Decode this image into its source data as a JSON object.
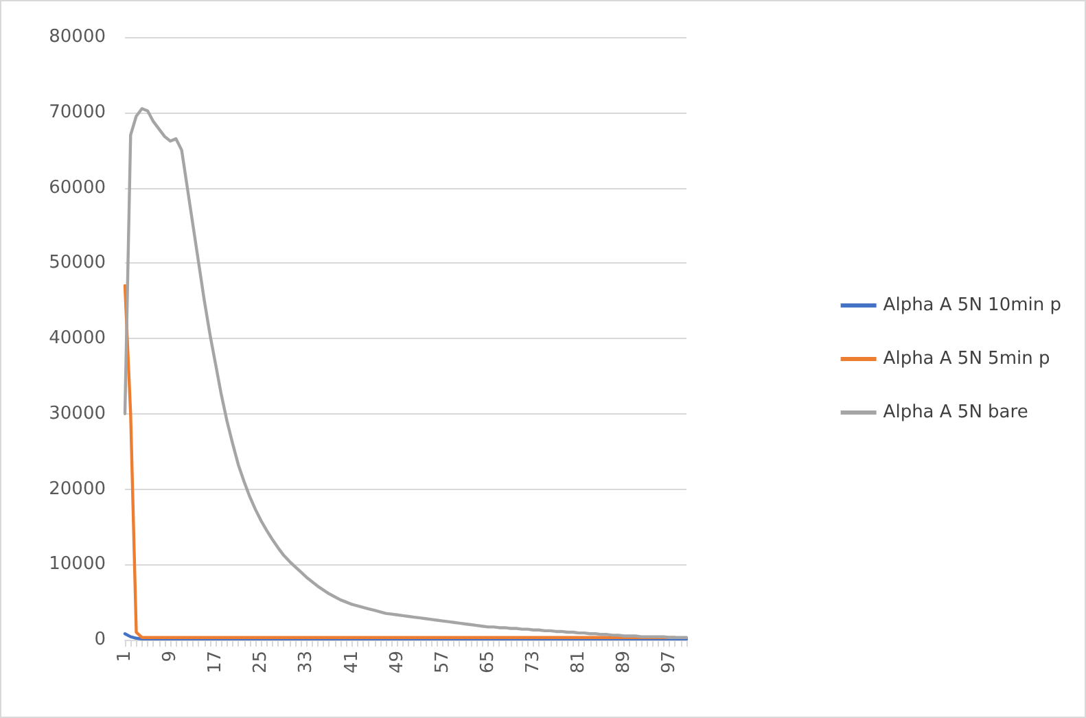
{
  "chart_data": {
    "type": "line",
    "categories": [
      "1",
      null,
      null,
      null,
      null,
      null,
      null,
      null,
      "9",
      null,
      null,
      null,
      null,
      null,
      null,
      null,
      "17",
      null,
      null,
      null,
      null,
      null,
      null,
      null,
      "25",
      null,
      null,
      null,
      null,
      null,
      null,
      null,
      "33",
      null,
      null,
      null,
      null,
      null,
      null,
      null,
      "41",
      null,
      null,
      null,
      null,
      null,
      null,
      null,
      "49",
      null,
      null,
      null,
      null,
      null,
      null,
      null,
      "57",
      null,
      null,
      null,
      null,
      null,
      null,
      null,
      "65",
      null,
      null,
      null,
      null,
      null,
      null,
      null,
      "73",
      null,
      null,
      null,
      null,
      null,
      null,
      null,
      "81",
      null,
      null,
      null,
      null,
      null,
      null,
      null,
      "89",
      null,
      null,
      null,
      null,
      null,
      null,
      null,
      "97",
      null,
      null,
      null
    ],
    "series": [
      {
        "name": "Alpha A 5N 10min p",
        "color": "#4472c4",
        "values": [
          800,
          400,
          200,
          100,
          100,
          100,
          100,
          100,
          100,
          100,
          100,
          100,
          100,
          100,
          100,
          100,
          100,
          100,
          100,
          100,
          100,
          100,
          100,
          100,
          100,
          100,
          100,
          100,
          100,
          100,
          100,
          100,
          100,
          100,
          100,
          100,
          100,
          100,
          100,
          100,
          100,
          100,
          100,
          100,
          100,
          100,
          100,
          100,
          100,
          100,
          100,
          100,
          100,
          100,
          100,
          100,
          100,
          100,
          100,
          100,
          100,
          100,
          100,
          100,
          100,
          100,
          100,
          100,
          100,
          100,
          100,
          100,
          100,
          100,
          100,
          100,
          100,
          100,
          100,
          100,
          100,
          100,
          100,
          100,
          100,
          100,
          100,
          100,
          100,
          100,
          100,
          100,
          100,
          100,
          100,
          100,
          100,
          100,
          100,
          100
        ]
      },
      {
        "name": "Alpha A 5N 5min p",
        "color": "#ed7d31",
        "values": [
          47000,
          30000,
          1000,
          300,
          300,
          300,
          300,
          300,
          300,
          300,
          300,
          300,
          300,
          300,
          300,
          300,
          300,
          300,
          300,
          300,
          300,
          300,
          300,
          300,
          300,
          300,
          300,
          300,
          300,
          300,
          300,
          300,
          300,
          300,
          300,
          300,
          300,
          300,
          300,
          300,
          300,
          300,
          300,
          300,
          300,
          300,
          300,
          300,
          300,
          300,
          300,
          300,
          300,
          300,
          300,
          300,
          300,
          300,
          300,
          300,
          300,
          300,
          300,
          300,
          300,
          300,
          300,
          300,
          300,
          300,
          300,
          300,
          300,
          300,
          300,
          300,
          300,
          300,
          300,
          300,
          300,
          300,
          300,
          300,
          300,
          300,
          300,
          300,
          300,
          300,
          300,
          300,
          300,
          300,
          300,
          300,
          300,
          300,
          null,
          null
        ]
      },
      {
        "name": "Alpha A 5N bare",
        "color": "#a5a5a5",
        "values": [
          30000,
          67000,
          69500,
          70500,
          70200,
          68800,
          67800,
          66800,
          66200,
          66500,
          65000,
          60000,
          55000,
          50000,
          45000,
          40500,
          36500,
          32500,
          29000,
          26000,
          23200,
          21000,
          19000,
          17300,
          15800,
          14500,
          13300,
          12200,
          11200,
          10400,
          9700,
          9000,
          8300,
          7700,
          7100,
          6600,
          6100,
          5700,
          5300,
          5000,
          4700,
          4500,
          4300,
          4100,
          3900,
          3700,
          3500,
          3400,
          3300,
          3200,
          3100,
          3000,
          2900,
          2800,
          2700,
          2600,
          2500,
          2400,
          2300,
          2200,
          2100,
          2000,
          1900,
          1800,
          1700,
          1700,
          1600,
          1600,
          1500,
          1500,
          1400,
          1400,
          1300,
          1300,
          1200,
          1200,
          1100,
          1100,
          1000,
          1000,
          900,
          900,
          800,
          800,
          700,
          700,
          600,
          600,
          500,
          500,
          500,
          400,
          400,
          400,
          400,
          400,
          300,
          300,
          300,
          300
        ]
      }
    ],
    "ylim": [
      0,
      80000
    ],
    "yticks": [
      0,
      10000,
      20000,
      30000,
      40000,
      50000,
      60000,
      70000,
      80000
    ],
    "grid": "y",
    "legend": "right",
    "marker": "none",
    "line_style": "solid"
  }
}
